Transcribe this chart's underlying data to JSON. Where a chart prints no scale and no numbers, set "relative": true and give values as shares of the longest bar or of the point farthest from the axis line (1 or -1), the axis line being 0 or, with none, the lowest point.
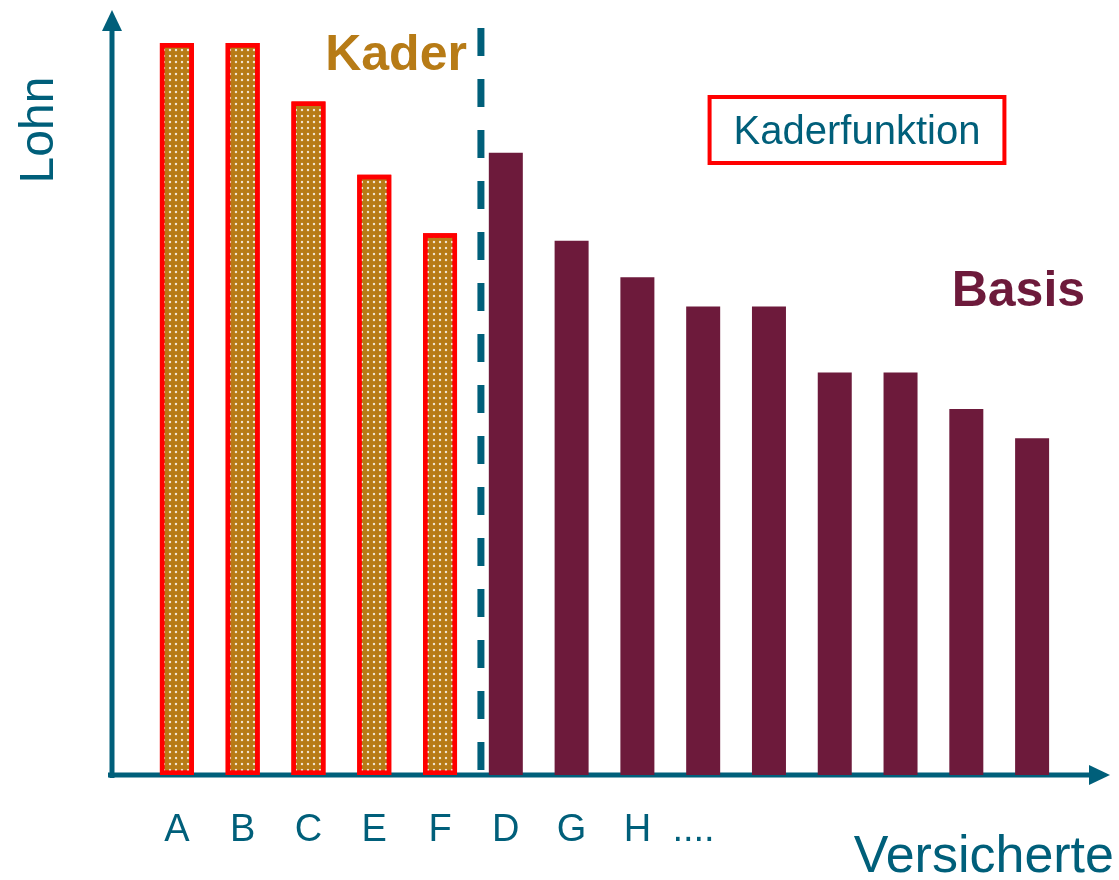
{
  "chart_data": {
    "type": "bar",
    "relative": true,
    "xlabel": "Versicherte",
    "ylabel": "Lohn",
    "categories": [
      "A",
      "B",
      "C",
      "E",
      "F",
      "D",
      "G",
      "H",
      null,
      null,
      null,
      null,
      null,
      null
    ],
    "series": [
      {
        "name": "Kader",
        "color": "#b77b16",
        "values": [
          1,
          1,
          0.92,
          0.82,
          0.74,
          null,
          null,
          null,
          null,
          null,
          null,
          null,
          null,
          null
        ]
      },
      {
        "name": "Basis",
        "color": "#6d1a3b",
        "values": [
          null,
          null,
          null,
          null,
          null,
          0.85,
          0.73,
          0.68,
          0.64,
          0.64,
          0.55,
          0.55,
          0.5,
          0.46
        ]
      }
    ],
    "annotations": [
      "Kaderfunktion",
      "...."
    ]
  }
}
